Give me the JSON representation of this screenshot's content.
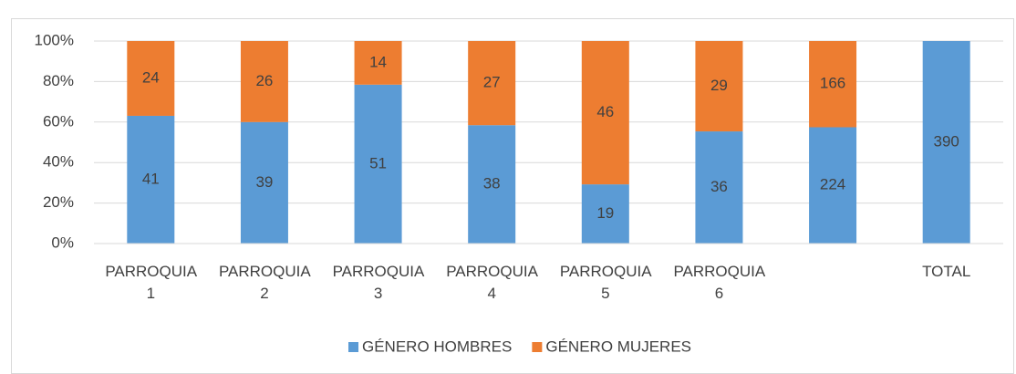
{
  "chart_data": {
    "type": "bar",
    "stacking": "percent",
    "categories": [
      "PARROQUIA 1",
      "PARROQUIA 2",
      "PARROQUIA 3",
      "PARROQUIA 4",
      "PARROQUIA 5",
      "PARROQUIA 6",
      null,
      "TOTAL"
    ],
    "series": [
      {
        "name": "GÉNERO HOMBRES",
        "color": "#5b9bd5",
        "values": [
          41,
          39,
          51,
          38,
          19,
          36,
          224,
          390
        ]
      },
      {
        "name": "GÉNERO MUJERES",
        "color": "#ed7d31",
        "values": [
          24,
          26,
          14,
          27,
          46,
          29,
          166,
          null
        ]
      }
    ],
    "ylim": [
      0,
      100
    ],
    "yticks": [
      {
        "value": 0,
        "label": "0%"
      },
      {
        "value": 20,
        "label": "20%"
      },
      {
        "value": 40,
        "label": "40%"
      },
      {
        "value": 60,
        "label": "60%"
      },
      {
        "value": 80,
        "label": "80%"
      },
      {
        "value": 100,
        "label": "100%"
      }
    ],
    "grid": true,
    "legend": "bottom"
  }
}
